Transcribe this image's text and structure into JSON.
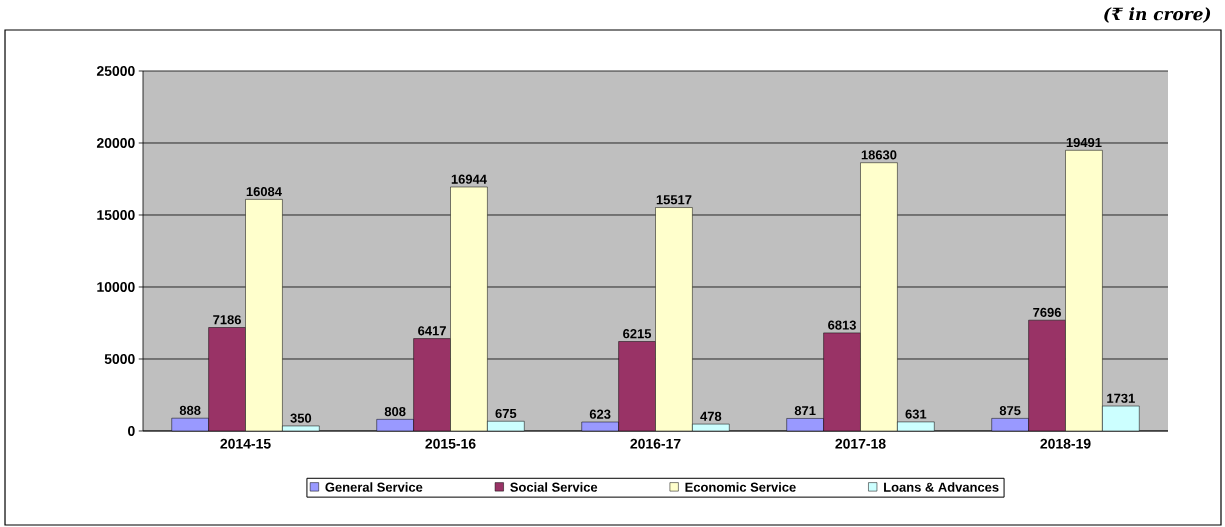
{
  "chart_data": {
    "type": "bar",
    "annotations": [
      "(₹ in crore)"
    ],
    "categories": [
      "2014-15",
      "2015-16",
      "2016-17",
      "2017-18",
      "2018-19"
    ],
    "series": [
      {
        "name": "General Service",
        "color": "#9999ff",
        "values": [
          888,
          808,
          623,
          871,
          875
        ]
      },
      {
        "name": "Social Service",
        "color": "#993366",
        "values": [
          7186,
          6417,
          6215,
          6813,
          7696
        ]
      },
      {
        "name": "Economic Service",
        "color": "#ffffcc",
        "values": [
          16084,
          16944,
          15517,
          18630,
          19491
        ]
      },
      {
        "name": "Loans & Advances",
        "color": "#ccffff",
        "values": [
          350,
          675,
          478,
          631,
          1731
        ]
      }
    ],
    "ylim": [
      0,
      25000
    ],
    "yticks": [
      0,
      5000,
      10000,
      15000,
      20000,
      25000
    ],
    "grid": "y",
    "legend": "bottom",
    "data_labels": true
  }
}
